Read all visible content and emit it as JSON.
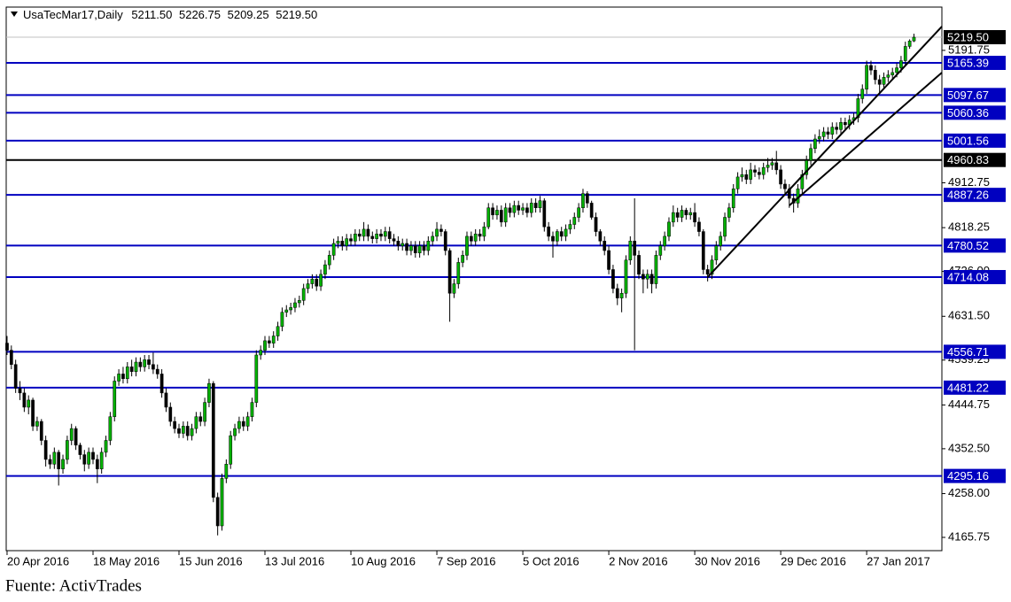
{
  "chart_data": {
    "type": "candlestick",
    "header": {
      "symbol": "UsaTecMar17,Daily",
      "ohlc": [
        "5211.50",
        "5226.75",
        "5209.25",
        "5219.50"
      ]
    },
    "source": "Fuente: ActivTrades",
    "up_color": "#00b000",
    "down_color": "#000000",
    "ylim": [
      4137.8,
      5282.9
    ],
    "xlim": [
      -0.2,
      217.5
    ],
    "yticks": [
      5191.75,
      4912.75,
      4818.25,
      {
        "value": 4726.0,
        "label": "4726.00"
      },
      {
        "value": 4631.5,
        "label": "4631.50"
      },
      4539.25,
      4444.75,
      {
        "value": 4352.5,
        "label": "4352.50"
      },
      {
        "value": 4258.0,
        "label": "4258.00"
      },
      4165.75
    ],
    "xticks": [
      {
        "value": 0,
        "label": "20 Apr 2016"
      },
      {
        "value": 20,
        "label": "18 May 2016"
      },
      {
        "value": 40,
        "label": "15 Jun 2016"
      },
      {
        "value": 60,
        "label": "13 Jul 2016"
      },
      {
        "value": 80,
        "label": "10 Aug 2016"
      },
      {
        "value": 100,
        "label": "7 Sep 2016"
      },
      {
        "value": 120,
        "label": "5 Oct 2016"
      },
      {
        "value": 140,
        "label": "2 Nov 2016"
      },
      {
        "value": 160,
        "label": "30 Nov 2016"
      },
      {
        "value": 180,
        "label": "29 Dec 2016"
      },
      {
        "value": 200,
        "label": "27 Jan 2017"
      }
    ],
    "last_price": {
      "value": 5219.5,
      "label": "5219.50",
      "color": "#c0c0c0"
    },
    "levels": [
      {
        "value": 5165.39,
        "color": "#0000c0"
      },
      {
        "value": 5097.67,
        "color": "#0000c0"
      },
      {
        "value": 5060.36,
        "color": "#0000c0"
      },
      {
        "value": 5001.56,
        "color": "#0000c0"
      },
      {
        "value": 4960.83,
        "color": "#000000"
      },
      {
        "value": 4887.26,
        "color": "#0000c0"
      },
      {
        "value": 4780.52,
        "color": "#0000c0"
      },
      {
        "value": 4714.08,
        "color": "#0000c0"
      },
      {
        "value": 4556.71,
        "color": "#0000c0"
      },
      {
        "value": 4481.22,
        "color": "#0000c0"
      },
      {
        "value": 4295.16,
        "color": "#0000c0"
      }
    ],
    "trendlines": [
      {
        "from": [
          163,
          4714
        ],
        "to": [
          217.5,
          5242
        ],
        "color": "#000000"
      },
      {
        "from": [
          182,
          4865
        ],
        "to": [
          217.5,
          5145
        ],
        "color": "#000000"
      }
    ],
    "open": [
      4575,
      4560,
      4530,
      4480,
      4470,
      4440,
      4455,
      4400,
      4410,
      4370,
      4330,
      4320,
      4345,
      4310,
      4330,
      4370,
      4395,
      4360,
      4340,
      4320,
      4345,
      4330,
      4310,
      4345,
      4370,
      4420,
      4495,
      4510,
      4500,
      4525,
      4515,
      4535,
      4525,
      4540,
      4530,
      4520,
      4510,
      4470,
      4440,
      4410,
      4395,
      4385,
      4400,
      4380,
      4395,
      4420,
      4410,
      4450,
      4490,
      4250,
      4190,
      4290,
      4320,
      4380,
      4395,
      4410,
      4400,
      4420,
      4450,
      4550,
      4560,
      4580,
      4575,
      4590,
      4610,
      4640,
      4645,
      4650,
      4660,
      4665,
      4690,
      4700,
      4710,
      4695,
      4720,
      4740,
      4760,
      4785,
      4790,
      4780,
      4795,
      4790,
      4805,
      4800,
      4815,
      4800,
      4795,
      4805,
      4800,
      4810,
      4795,
      4790,
      4780,
      4785,
      4770,
      4780,
      4765,
      4780,
      4770,
      4790,
      4800,
      4815,
      4810,
      4770,
      4680,
      4700,
      4745,
      4760,
      4800,
      4790,
      4805,
      4800,
      4820,
      4860,
      4845,
      4855,
      4830,
      4860,
      4850,
      4865,
      4855,
      4860,
      4850,
      4870,
      4860,
      4875,
      4820,
      4800,
      4790,
      4810,
      4800,
      4815,
      4825,
      4840,
      4860,
      4890,
      4870,
      4840,
      4810,
      4790,
      4770,
      4730,
      4690,
      4670,
      4680,
      4750,
      4790,
      4760,
      4720,
      4710,
      4720,
      4700,
      4760,
      4780,
      4800,
      4830,
      4850,
      4840,
      4855,
      4845,
      4850,
      4830,
      4810,
      4730,
      4720,
      4750,
      4780,
      4800,
      4840,
      4860,
      4900,
      4925,
      4930,
      4920,
      4940,
      4935,
      4930,
      4945,
      4950,
      4955,
      4940,
      4910,
      4900,
      4880,
      4870,
      4900,
      4930,
      4960,
      4985,
      5005,
      5010,
      5020,
      5015,
      5030,
      5025,
      5040,
      5035,
      5045,
      5050,
      5090,
      5110,
      5160,
      5150,
      5130,
      5120,
      5135,
      5140,
      5145,
      5155,
      5170,
      5200,
      5211.5
    ],
    "high": [
      4590,
      4570,
      4540,
      4495,
      4480,
      4465,
      4460,
      4420,
      4415,
      4380,
      4340,
      4355,
      4350,
      4340,
      4380,
      4405,
      4400,
      4365,
      4350,
      4355,
      4355,
      4340,
      4355,
      4380,
      4430,
      4505,
      4520,
      4525,
      4535,
      4540,
      4545,
      4545,
      4550,
      4550,
      4555,
      4530,
      4520,
      4480,
      4450,
      4420,
      4405,
      4410,
      4410,
      4405,
      4430,
      4430,
      4460,
      4500,
      4495,
      4260,
      4300,
      4330,
      4390,
      4405,
      4420,
      4420,
      4430,
      4460,
      4560,
      4570,
      4590,
      4590,
      4600,
      4620,
      4650,
      4655,
      4660,
      4670,
      4675,
      4700,
      4710,
      4720,
      4720,
      4730,
      4750,
      4770,
      4795,
      4800,
      4800,
      4805,
      4805,
      4815,
      4815,
      4830,
      4825,
      4810,
      4815,
      4815,
      4820,
      4820,
      4805,
      4800,
      4795,
      4795,
      4790,
      4790,
      4790,
      4790,
      4800,
      4810,
      4830,
      4825,
      4815,
      4775,
      4710,
      4755,
      4770,
      4810,
      4810,
      4815,
      4815,
      4830,
      4870,
      4870,
      4865,
      4865,
      4870,
      4870,
      4875,
      4875,
      4870,
      4870,
      4880,
      4880,
      4885,
      4880,
      4830,
      4810,
      4815,
      4820,
      4825,
      4835,
      4850,
      4870,
      4900,
      4895,
      4875,
      4850,
      4815,
      4800,
      4780,
      4740,
      4700,
      4690,
      4760,
      4800,
      4880,
      4770,
      4730,
      4730,
      4730,
      4770,
      4790,
      4810,
      4840,
      4865,
      4860,
      4865,
      4860,
      4860,
      4870,
      4840,
      4815,
      4740,
      4760,
      4790,
      4810,
      4850,
      4870,
      4910,
      4935,
      4945,
      4940,
      4955,
      4950,
      4945,
      4955,
      4965,
      4965,
      4980,
      4950,
      4920,
      4910,
      4890,
      4910,
      4940,
      4970,
      4995,
      5015,
      5025,
      5030,
      5030,
      5040,
      5040,
      5050,
      5050,
      5055,
      5060,
      5100,
      5120,
      5170,
      5170,
      5160,
      5140,
      5145,
      5150,
      5155,
      5165,
      5180,
      5210,
      5215,
      5226.75
    ],
    "low": [
      4550,
      4520,
      4470,
      4455,
      4430,
      4425,
      4390,
      4390,
      4360,
      4315,
      4310,
      4310,
      4275,
      4300,
      4320,
      4360,
      4350,
      4330,
      4305,
      4310,
      4320,
      4280,
      4300,
      4335,
      4360,
      4410,
      4485,
      4490,
      4490,
      4505,
      4505,
      4515,
      4515,
      4520,
      4510,
      4500,
      4460,
      4430,
      4400,
      4385,
      4375,
      4375,
      4370,
      4370,
      4385,
      4400,
      4400,
      4440,
      4240,
      4170,
      4180,
      4280,
      4310,
      4370,
      4385,
      4390,
      4390,
      4410,
      4440,
      4540,
      4550,
      4565,
      4565,
      4580,
      4600,
      4630,
      4635,
      4640,
      4650,
      4655,
      4680,
      4690,
      4685,
      4685,
      4710,
      4730,
      4750,
      4775,
      4770,
      4770,
      4780,
      4780,
      4790,
      4790,
      4790,
      4785,
      4785,
      4790,
      4790,
      4785,
      4780,
      4770,
      4770,
      4760,
      4760,
      4755,
      4755,
      4760,
      4760,
      4780,
      4790,
      4800,
      4760,
      4620,
      4670,
      4690,
      4735,
      4750,
      4780,
      4780,
      4790,
      4790,
      4815,
      4835,
      4835,
      4820,
      4820,
      4840,
      4840,
      4845,
      4845,
      4840,
      4840,
      4850,
      4850,
      4810,
      4790,
      4755,
      4780,
      4790,
      4790,
      4805,
      4815,
      4830,
      4850,
      4860,
      4835,
      4800,
      4780,
      4760,
      4720,
      4680,
      4655,
      4640,
      4670,
      4740,
      4560,
      4710,
      4680,
      4690,
      4680,
      4690,
      4750,
      4770,
      4790,
      4820,
      4830,
      4830,
      4835,
      4835,
      4820,
      4800,
      4720,
      4705,
      4710,
      4740,
      4770,
      4790,
      4830,
      4850,
      4890,
      4915,
      4910,
      4910,
      4925,
      4920,
      4920,
      4935,
      4940,
      4930,
      4900,
      4890,
      4860,
      4850,
      4860,
      4890,
      4920,
      4950,
      4975,
      4995,
      5000,
      5005,
      5005,
      5015,
      5015,
      5025,
      5025,
      5035,
      5040,
      5080,
      5100,
      5140,
      5120,
      5100,
      5110,
      5125,
      5130,
      5135,
      5145,
      5160,
      5195,
      5209.25
    ],
    "close": [
      4560,
      4530,
      4480,
      4470,
      4440,
      4455,
      4400,
      4410,
      4370,
      4330,
      4320,
      4345,
      4310,
      4330,
      4370,
      4395,
      4360,
      4340,
      4320,
      4345,
      4330,
      4310,
      4345,
      4370,
      4420,
      4495,
      4510,
      4500,
      4525,
      4515,
      4535,
      4525,
      4540,
      4530,
      4520,
      4510,
      4470,
      4440,
      4410,
      4395,
      4385,
      4400,
      4380,
      4395,
      4420,
      4410,
      4450,
      4490,
      4250,
      4190,
      4290,
      4320,
      4380,
      4395,
      4410,
      4400,
      4420,
      4450,
      4550,
      4560,
      4580,
      4575,
      4590,
      4610,
      4640,
      4645,
      4650,
      4660,
      4665,
      4690,
      4700,
      4710,
      4695,
      4720,
      4740,
      4760,
      4785,
      4790,
      4780,
      4795,
      4790,
      4805,
      4800,
      4815,
      4800,
      4795,
      4805,
      4800,
      4810,
      4795,
      4790,
      4780,
      4785,
      4770,
      4780,
      4765,
      4780,
      4770,
      4790,
      4800,
      4815,
      4810,
      4770,
      4680,
      4700,
      4745,
      4760,
      4800,
      4790,
      4805,
      4800,
      4820,
      4860,
      4845,
      4855,
      4830,
      4860,
      4850,
      4865,
      4855,
      4860,
      4850,
      4870,
      4860,
      4875,
      4820,
      4800,
      4790,
      4810,
      4800,
      4815,
      4825,
      4840,
      4860,
      4890,
      4870,
      4840,
      4810,
      4790,
      4770,
      4730,
      4690,
      4670,
      4680,
      4750,
      4790,
      4760,
      4720,
      4710,
      4720,
      4700,
      4760,
      4780,
      4800,
      4830,
      4850,
      4840,
      4855,
      4845,
      4850,
      4830,
      4810,
      4730,
      4720,
      4750,
      4780,
      4800,
      4840,
      4860,
      4900,
      4925,
      4930,
      4920,
      4940,
      4935,
      4930,
      4945,
      4950,
      4955,
      4940,
      4910,
      4900,
      4880,
      4870,
      4900,
      4930,
      4960,
      4985,
      5005,
      5010,
      5020,
      5015,
      5030,
      5025,
      5040,
      5035,
      5045,
      5050,
      5090,
      5110,
      5160,
      5150,
      5130,
      5120,
      5135,
      5140,
      5145,
      5155,
      5170,
      5200,
      5211.5,
      5219.5
    ]
  }
}
